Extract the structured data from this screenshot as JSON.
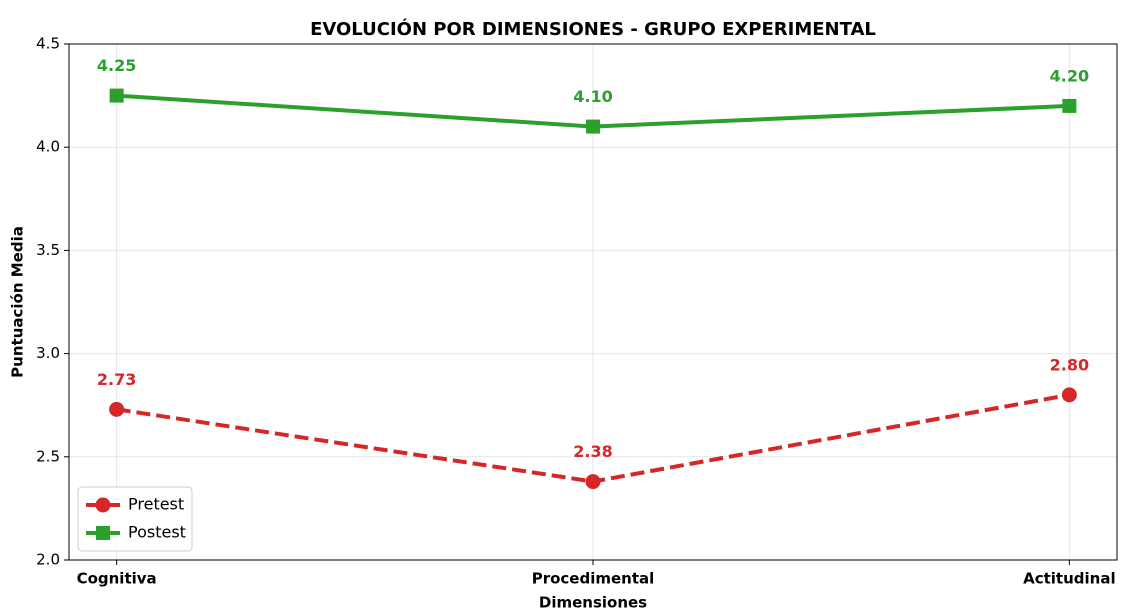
{
  "chart_data": {
    "type": "line",
    "title": "EVOLUCIÓN POR DIMENSIONES - GRUPO EXPERIMENTAL",
    "xlabel": "Dimensiones",
    "ylabel": "Puntuación Media",
    "categories": [
      "Cognitiva",
      "Procedimental",
      "Actitudinal"
    ],
    "series": [
      {
        "name": "Pretest",
        "color": "#d62728",
        "linestyle": "dashed",
        "marker": "circle",
        "values": [
          2.73,
          2.38,
          2.8
        ],
        "value_labels": [
          "2.73",
          "2.38",
          "2.80"
        ]
      },
      {
        "name": "Postest",
        "color": "#2ca02c",
        "linestyle": "solid",
        "marker": "square",
        "values": [
          4.25,
          4.1,
          4.2
        ],
        "value_labels": [
          "4.25",
          "4.10",
          "4.20"
        ]
      }
    ],
    "ylim": [
      2.0,
      4.5
    ],
    "yticks": [
      {
        "value": 2.0,
        "label": "2.0"
      },
      2.5,
      {
        "value": 3.0,
        "label": "3.0"
      },
      3.5,
      {
        "value": 4.0,
        "label": "4.0"
      },
      4.5
    ],
    "grid": true,
    "legend": "lower left"
  }
}
